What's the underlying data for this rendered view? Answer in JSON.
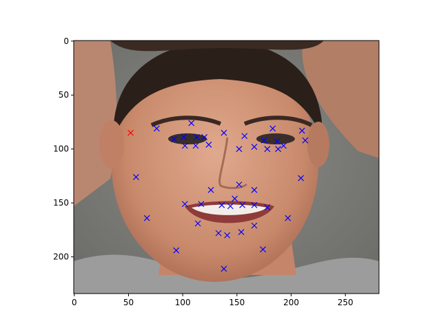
{
  "chart_data": {
    "type": "scatter",
    "title": "",
    "xlabel": "",
    "ylabel": "",
    "xlim": [
      -0.5,
      281
    ],
    "ylim": [
      234,
      -0.5
    ],
    "y_inverted": true,
    "grid": false,
    "background": "photograph of a woman's face (image extent 0-281 by 0-234 pixels)",
    "x_ticks": [
      0,
      50,
      100,
      150,
      200,
      250
    ],
    "y_ticks": [
      0,
      50,
      100,
      150,
      200
    ],
    "series": [
      {
        "marker": "x",
        "color": "#0000ff",
        "points": [
          [
            76,
            81
          ],
          [
            108,
            76
          ],
          [
            138,
            85
          ],
          [
            157,
            88
          ],
          [
            183,
            81
          ],
          [
            210,
            83
          ],
          [
            92,
            91
          ],
          [
            101,
            89
          ],
          [
            113,
            89
          ],
          [
            120,
            89
          ],
          [
            102,
            97
          ],
          [
            112,
            97
          ],
          [
            124,
            96
          ],
          [
            152,
            100
          ],
          [
            166,
            98
          ],
          [
            175,
            92
          ],
          [
            178,
            100
          ],
          [
            187,
            93
          ],
          [
            188,
            100
          ],
          [
            193,
            97
          ],
          [
            213,
            92
          ],
          [
            57,
            126
          ],
          [
            209,
            127
          ],
          [
            126,
            138
          ],
          [
            152,
            133
          ],
          [
            166,
            138
          ],
          [
            148,
            146
          ],
          [
            102,
            151
          ],
          [
            117,
            151
          ],
          [
            136,
            152
          ],
          [
            144,
            153
          ],
          [
            155,
            152
          ],
          [
            166,
            152
          ],
          [
            178,
            154
          ],
          [
            67,
            164
          ],
          [
            197,
            164
          ],
          [
            114,
            169
          ],
          [
            166,
            171
          ],
          [
            133,
            178
          ],
          [
            141,
            180
          ],
          [
            154,
            177
          ],
          [
            94,
            194
          ],
          [
            174,
            193
          ],
          [
            138,
            211
          ]
        ]
      },
      {
        "marker": "x",
        "color": "#ff0000",
        "points": [
          [
            52,
            85
          ]
        ]
      }
    ]
  }
}
